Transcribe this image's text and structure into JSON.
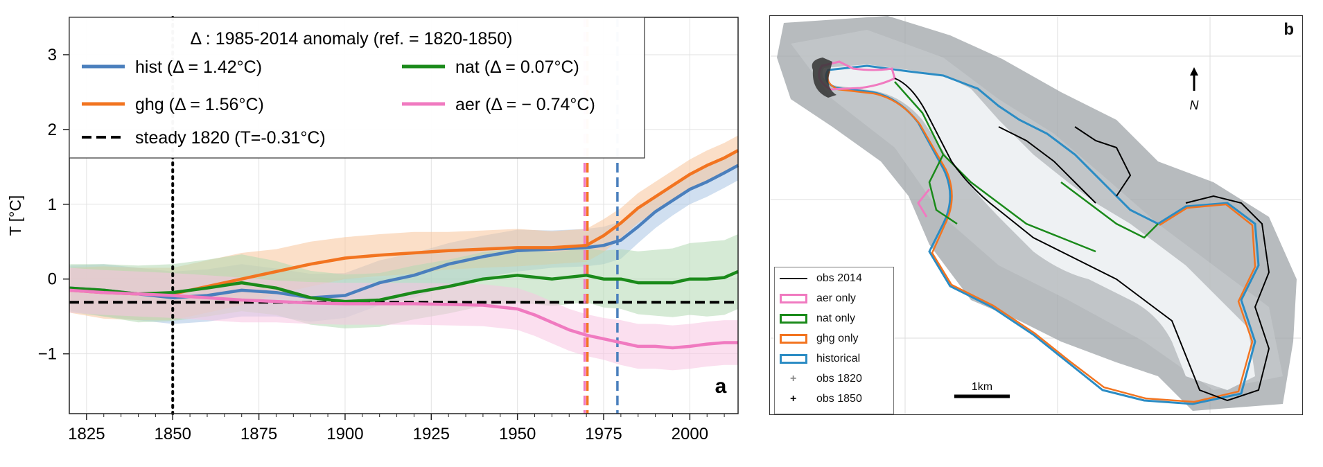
{
  "panel_a": {
    "panel_letter": "a",
    "legend": {
      "title": "Δ : 1985-2014 anomaly (ref. = 1820-1850)",
      "entries": [
        {
          "label": "hist (Δ = 1.42°C)",
          "color": "#4a7fbd",
          "dash": "solid"
        },
        {
          "label": "nat (Δ = 0.07°C)",
          "color": "#1a8a1a",
          "dash": "solid"
        },
        {
          "label": "ghg (Δ = 1.56°C)",
          "color": "#f27420",
          "dash": "solid"
        },
        {
          "label": "aer (Δ = − 0.74°C)",
          "color": "#f07ac0",
          "dash": "solid"
        },
        {
          "label": "steady 1820 (T=-0.31°C)",
          "color": "#000000",
          "dash": "dashed"
        }
      ]
    }
  },
  "panel_b": {
    "panel_letter": "b",
    "north_label": "N",
    "scale_label": "1km",
    "legend": [
      {
        "label": "obs 2014",
        "kind": "line",
        "color": "#000000"
      },
      {
        "label": "aer only",
        "kind": "box",
        "color": "#f07ac0"
      },
      {
        "label": "nat only",
        "kind": "box",
        "color": "#1a8a1a"
      },
      {
        "label": "ghg only",
        "kind": "box",
        "color": "#f27420"
      },
      {
        "label": "historical",
        "kind": "box",
        "color": "#2b8cc4"
      },
      {
        "label": "obs 1820",
        "kind": "plus",
        "color": "#888888"
      },
      {
        "label": "obs 1850",
        "kind": "plus",
        "color": "#000000"
      }
    ]
  },
  "chart_data": [
    {
      "type": "line",
      "ylabel": "T [°C]",
      "xlim": [
        1820,
        2014
      ],
      "ylim": [
        -1.8,
        3.5
      ],
      "xticks": [
        1825,
        1850,
        1875,
        1900,
        1925,
        1950,
        1975,
        2000
      ],
      "yticks": [
        -1,
        0,
        1,
        2,
        3
      ],
      "grid": true,
      "legend_position": "top-left",
      "series": [
        {
          "name": "hist",
          "color": "#4a7fbd",
          "band_color": "#a9c4e4",
          "x": [
            1820,
            1830,
            1840,
            1850,
            1860,
            1870,
            1880,
            1890,
            1900,
            1910,
            1920,
            1930,
            1940,
            1950,
            1960,
            1970,
            1975,
            1980,
            1985,
            1990,
            1995,
            2000,
            2005,
            2010,
            2014
          ],
          "y": [
            -0.12,
            -0.15,
            -0.2,
            -0.25,
            -0.22,
            -0.15,
            -0.18,
            -0.25,
            -0.22,
            -0.05,
            0.05,
            0.2,
            0.3,
            0.38,
            0.4,
            0.42,
            0.45,
            0.52,
            0.7,
            0.9,
            1.05,
            1.2,
            1.3,
            1.42,
            1.52
          ],
          "band": [
            0.3,
            0.35,
            0.35,
            0.35,
            0.35,
            0.35,
            0.32,
            0.32,
            0.3,
            0.3,
            0.3,
            0.28,
            0.28,
            0.28,
            0.25,
            0.25,
            0.25,
            0.25,
            0.22,
            0.22,
            0.2,
            0.2,
            0.2,
            0.2,
            0.2
          ]
        },
        {
          "name": "ghg",
          "color": "#f27420",
          "band_color": "#f7c49a",
          "x": [
            1820,
            1830,
            1840,
            1850,
            1860,
            1870,
            1880,
            1890,
            1900,
            1910,
            1920,
            1930,
            1940,
            1950,
            1960,
            1970,
            1975,
            1980,
            1985,
            1990,
            1995,
            2000,
            2005,
            2010,
            2014
          ],
          "y": [
            -0.15,
            -0.18,
            -0.2,
            -0.2,
            -0.1,
            0.0,
            0.1,
            0.2,
            0.28,
            0.32,
            0.35,
            0.38,
            0.4,
            0.42,
            0.42,
            0.45,
            0.58,
            0.75,
            0.95,
            1.1,
            1.25,
            1.4,
            1.52,
            1.62,
            1.72
          ],
          "band": [
            0.3,
            0.35,
            0.35,
            0.35,
            0.35,
            0.35,
            0.3,
            0.3,
            0.28,
            0.28,
            0.28,
            0.25,
            0.25,
            0.25,
            0.22,
            0.22,
            0.22,
            0.2,
            0.2,
            0.2,
            0.2,
            0.2,
            0.2,
            0.2,
            0.2
          ]
        },
        {
          "name": "nat",
          "color": "#1a8a1a",
          "band_color": "#b2d8b2",
          "x": [
            1820,
            1830,
            1840,
            1850,
            1860,
            1870,
            1880,
            1890,
            1900,
            1910,
            1920,
            1930,
            1940,
            1950,
            1960,
            1970,
            1975,
            1980,
            1985,
            1990,
            1995,
            2000,
            2005,
            2010,
            2014
          ],
          "y": [
            -0.12,
            -0.15,
            -0.2,
            -0.18,
            -0.12,
            -0.05,
            -0.12,
            -0.25,
            -0.3,
            -0.28,
            -0.18,
            -0.1,
            0.0,
            0.05,
            0.0,
            0.05,
            0.0,
            0.0,
            -0.05,
            -0.05,
            -0.05,
            0.0,
            0.0,
            0.02,
            0.1
          ],
          "band": [
            0.32,
            0.35,
            0.38,
            0.38,
            0.38,
            0.38,
            0.36,
            0.36,
            0.36,
            0.36,
            0.36,
            0.36,
            0.36,
            0.36,
            0.36,
            0.36,
            0.38,
            0.4,
            0.42,
            0.44,
            0.46,
            0.48,
            0.5,
            0.5,
            0.5
          ]
        },
        {
          "name": "aer",
          "color": "#f07ac0",
          "band_color": "#f7c4e2",
          "x": [
            1820,
            1830,
            1840,
            1850,
            1860,
            1870,
            1880,
            1890,
            1900,
            1910,
            1920,
            1930,
            1940,
            1950,
            1955,
            1960,
            1965,
            1970,
            1975,
            1980,
            1985,
            1990,
            1995,
            2000,
            2005,
            2010,
            2014
          ],
          "y": [
            -0.15,
            -0.18,
            -0.2,
            -0.22,
            -0.25,
            -0.28,
            -0.3,
            -0.32,
            -0.33,
            -0.33,
            -0.33,
            -0.34,
            -0.35,
            -0.4,
            -0.48,
            -0.58,
            -0.68,
            -0.75,
            -0.8,
            -0.85,
            -0.9,
            -0.9,
            -0.92,
            -0.9,
            -0.87,
            -0.85,
            -0.85
          ],
          "band": [
            0.3,
            0.3,
            0.3,
            0.3,
            0.3,
            0.3,
            0.28,
            0.28,
            0.28,
            0.28,
            0.28,
            0.28,
            0.28,
            0.28,
            0.28,
            0.28,
            0.28,
            0.28,
            0.28,
            0.3,
            0.3,
            0.3,
            0.3,
            0.3,
            0.3,
            0.3,
            0.3
          ]
        }
      ],
      "reference_lines": [
        {
          "orientation": "horizontal",
          "value": -0.31,
          "style": "dashed",
          "color": "#000000"
        },
        {
          "orientation": "vertical",
          "value": 1850,
          "style": "dotted",
          "color": "#000000"
        },
        {
          "orientation": "vertical",
          "value": 1969.5,
          "style": "dashed",
          "color": "#f07ac0"
        },
        {
          "orientation": "vertical",
          "value": 1970.3,
          "style": "dashed",
          "color": "#f27420"
        },
        {
          "orientation": "vertical",
          "value": 1979,
          "style": "dashed",
          "color": "#4a7fbd"
        }
      ]
    }
  ]
}
